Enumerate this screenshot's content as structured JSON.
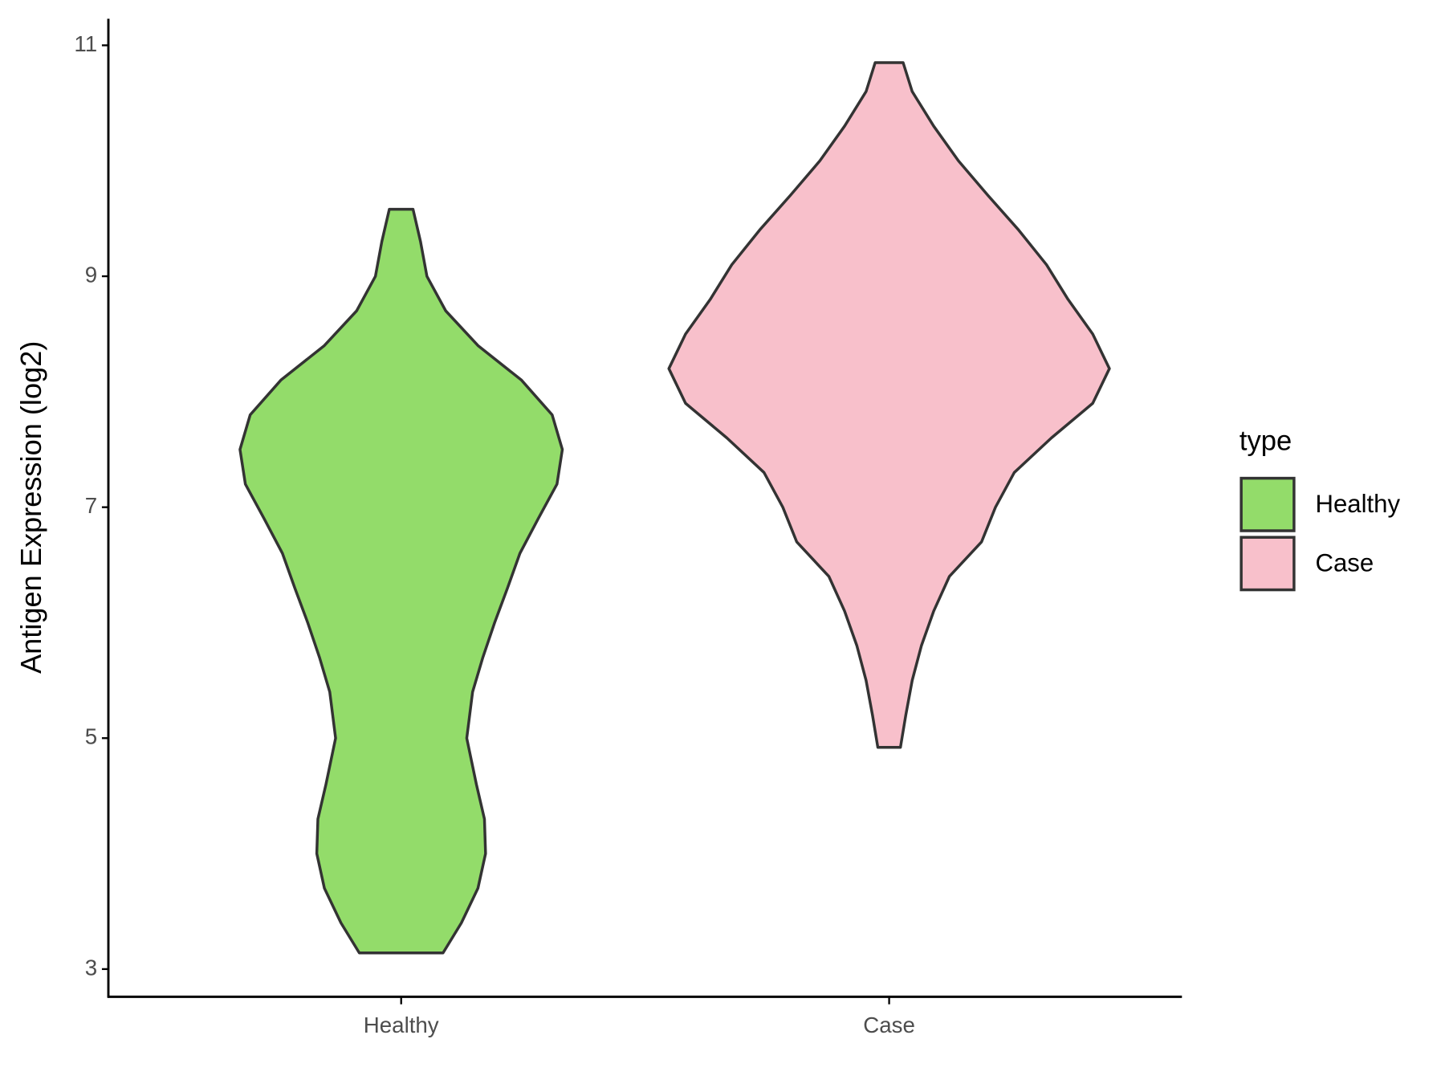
{
  "chart_data": {
    "type": "violin",
    "y_label": "Antigen Expression (log2)",
    "categories": [
      "Healthy",
      "Case"
    ],
    "legend_title": "type",
    "legend": "right",
    "series": [
      {
        "name": "Healthy",
        "color": "#93dc6a",
        "y": [
          9.58,
          9.3,
          9.0,
          8.7,
          8.4,
          8.1,
          7.8,
          7.5,
          7.2,
          6.9,
          6.6,
          6.3,
          6.0,
          5.7,
          5.4,
          5.0,
          4.6,
          4.3,
          4.0,
          3.7,
          3.4,
          3.14
        ],
        "width": [
          0.022,
          0.036,
          0.048,
          0.083,
          0.143,
          0.224,
          0.281,
          0.3,
          0.29,
          0.255,
          0.221,
          0.198,
          0.174,
          0.152,
          0.133,
          0.122,
          0.14,
          0.155,
          0.157,
          0.143,
          0.112,
          0.078
        ]
      },
      {
        "name": "Case",
        "color": "#f8c0cb",
        "y": [
          10.85,
          10.6,
          10.3,
          10.0,
          9.7,
          9.4,
          9.1,
          8.8,
          8.5,
          8.2,
          7.9,
          7.6,
          7.3,
          7.0,
          6.7,
          6.4,
          6.1,
          5.8,
          5.5,
          5.2,
          4.92
        ],
        "width": [
          0.026,
          0.043,
          0.083,
          0.129,
          0.184,
          0.241,
          0.293,
          0.333,
          0.379,
          0.41,
          0.379,
          0.302,
          0.233,
          0.198,
          0.172,
          0.112,
          0.083,
          0.06,
          0.043,
          0.031,
          0.021
        ]
      }
    ],
    "ylim": [
      2.76,
      11.23
    ],
    "yticks": [
      3,
      5,
      7,
      9,
      11
    ]
  }
}
